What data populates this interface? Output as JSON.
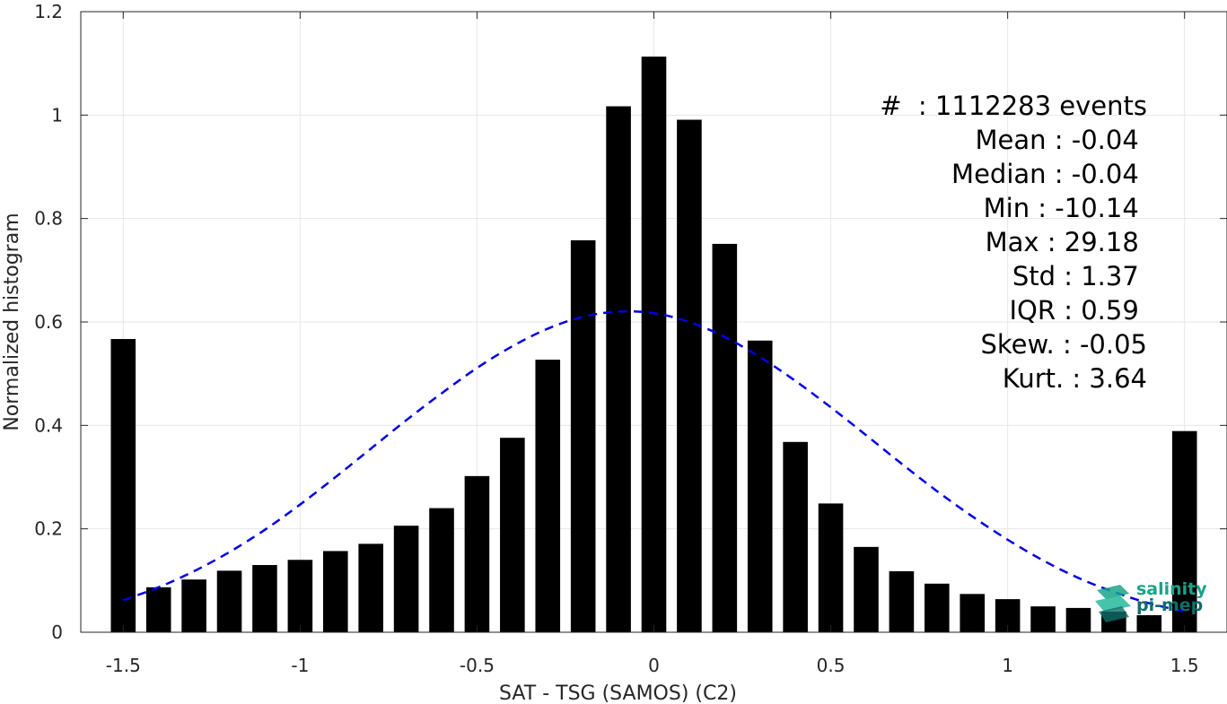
{
  "chart_data": {
    "type": "bar",
    "xlabel": "SAT - TSG (SAMOS) (C2)",
    "ylabel": "Normalized histogram",
    "xlim": [
      -1.62,
      1.62
    ],
    "ylim": [
      0,
      1.2
    ],
    "xticks": [
      "-1.5",
      "-1",
      "-0.5",
      "0",
      "0.5",
      "1",
      "1.5"
    ],
    "yticks": [
      "0",
      "0.2",
      "0.4",
      "0.6",
      "0.8",
      "1",
      "1.2"
    ],
    "grid": true,
    "bar_width": 0.07,
    "bars": {
      "x": [
        -1.5,
        -1.4,
        -1.3,
        -1.2,
        -1.1,
        -1.0,
        -0.9,
        -0.8,
        -0.7,
        -0.6,
        -0.5,
        -0.4,
        -0.3,
        -0.2,
        -0.1,
        0.0,
        0.1,
        0.2,
        0.3,
        0.4,
        0.5,
        0.6,
        0.7,
        0.8,
        0.9,
        1.0,
        1.1,
        1.2,
        1.3,
        1.4,
        1.5
      ],
      "values": [
        0.567,
        0.087,
        0.102,
        0.119,
        0.13,
        0.14,
        0.157,
        0.171,
        0.206,
        0.24,
        0.302,
        0.376,
        0.527,
        0.758,
        1.017,
        1.113,
        0.991,
        0.751,
        0.564,
        0.368,
        0.249,
        0.165,
        0.118,
        0.094,
        0.074,
        0.064,
        0.05,
        0.047,
        0.04,
        0.033,
        0.389
      ],
      "color": "#000000"
    },
    "fit_curve": {
      "style": "dashed",
      "color": "#0000e6",
      "x": [
        -1.5,
        -1.4,
        -1.3,
        -1.2,
        -1.1,
        -1.0,
        -0.9,
        -0.8,
        -0.7,
        -0.6,
        -0.5,
        -0.4,
        -0.3,
        -0.2,
        -0.1,
        0.0,
        0.1,
        0.2,
        0.3,
        0.4,
        0.5,
        0.6,
        0.7,
        0.8,
        0.9,
        1.0,
        1.1,
        1.2,
        1.3,
        1.4,
        1.5
      ],
      "y": [
        0.062,
        0.087,
        0.118,
        0.155,
        0.198,
        0.247,
        0.3,
        0.355,
        0.41,
        0.462,
        0.511,
        0.553,
        0.587,
        0.61,
        0.62,
        0.617,
        0.6,
        0.571,
        0.532,
        0.486,
        0.435,
        0.381,
        0.326,
        0.273,
        0.224,
        0.179,
        0.139,
        0.105,
        0.078,
        0.056,
        0.04
      ]
    }
  },
  "stats": [
    "#  : 1112283 events",
    "Mean : -0.04 ",
    "Median : -0.04 ",
    "Min : -10.14 ",
    "Max : 29.18 ",
    "Std : 1.37 ",
    "IQR : 0.59 ",
    "Skew. : -0.05",
    "Kurt. : 3.64"
  ],
  "logo": {
    "line1": "salinity",
    "line2": "pi-mep",
    "colors": [
      "#1aa38a",
      "#0f6e6a"
    ]
  }
}
